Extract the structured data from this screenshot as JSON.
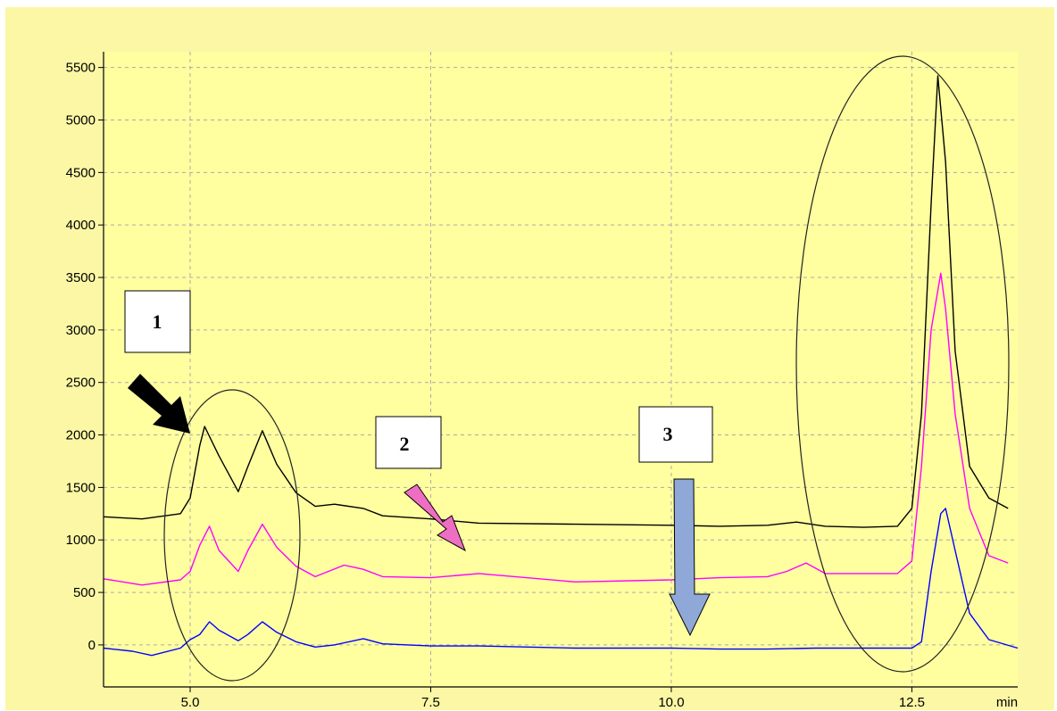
{
  "chart_data": {
    "type": "line",
    "title": "",
    "xlabel": "min",
    "ylabel": "",
    "xlim": [
      4.1,
      13.6
    ],
    "ylim": [
      -400,
      5650
    ],
    "xticks": [
      5.0,
      7.5,
      10.0,
      12.5
    ],
    "xtick_labels": [
      "5.0",
      "7.5",
      "10.0",
      "12.5"
    ],
    "yticks": [
      0,
      500,
      1000,
      1500,
      2000,
      2500,
      3000,
      3500,
      4000,
      4500,
      5000,
      5500
    ],
    "ytick_labels": [
      "0",
      "500",
      "1000",
      "1500",
      "2000",
      "2500",
      "3000",
      "3500",
      "4000",
      "4500",
      "5000",
      "5500"
    ],
    "grid": true,
    "colors": {
      "page_background": "#ffffff",
      "outer_background": "#fbf7a5",
      "plot_background": "#ffffa0",
      "grid": "#aaaaaa",
      "annotation": "#000000"
    },
    "series": [
      {
        "color": "#000000",
        "x": [
          4.1,
          4.5,
          4.9,
          5.0,
          5.1,
          5.15,
          5.3,
          5.5,
          5.6,
          5.75,
          5.9,
          6.1,
          6.3,
          6.5,
          6.8,
          7.0,
          7.5,
          8.0,
          9.0,
          10.0,
          10.5,
          11.0,
          11.3,
          11.6,
          12.0,
          12.35,
          12.5,
          12.6,
          12.7,
          12.77,
          12.85,
          12.95,
          13.1,
          13.3,
          13.5
        ],
        "y": [
          1220,
          1200,
          1250,
          1400,
          1900,
          2080,
          1800,
          1460,
          1700,
          2040,
          1720,
          1450,
          1320,
          1340,
          1300,
          1230,
          1200,
          1160,
          1150,
          1140,
          1130,
          1140,
          1170,
          1130,
          1120,
          1130,
          1300,
          2200,
          4200,
          5420,
          4600,
          2800,
          1700,
          1400,
          1300
        ]
      },
      {
        "color": "#ff00ff",
        "x": [
          4.1,
          4.5,
          4.9,
          5.0,
          5.1,
          5.2,
          5.3,
          5.5,
          5.6,
          5.75,
          5.9,
          6.1,
          6.3,
          6.6,
          6.8,
          7.0,
          7.5,
          8.0,
          9.0,
          10.0,
          10.5,
          11.0,
          11.2,
          11.4,
          11.6,
          12.0,
          12.35,
          12.5,
          12.6,
          12.7,
          12.8,
          12.85,
          12.95,
          13.1,
          13.3,
          13.5
        ],
        "y": [
          630,
          570,
          620,
          700,
          950,
          1130,
          900,
          700,
          900,
          1150,
          930,
          750,
          650,
          760,
          720,
          650,
          640,
          680,
          600,
          620,
          640,
          650,
          700,
          780,
          680,
          680,
          680,
          800,
          1700,
          3000,
          3540,
          3200,
          2200,
          1300,
          850,
          780
        ]
      },
      {
        "color": "#0000ff",
        "x": [
          4.1,
          4.4,
          4.6,
          4.9,
          5.0,
          5.1,
          5.2,
          5.3,
          5.5,
          5.6,
          5.75,
          5.9,
          6.1,
          6.3,
          6.5,
          6.8,
          7.0,
          7.5,
          8.0,
          9.0,
          10.0,
          10.5,
          11.0,
          11.5,
          12.0,
          12.35,
          12.5,
          12.6,
          12.7,
          12.8,
          12.85,
          12.95,
          13.1,
          13.3,
          13.6
        ],
        "y": [
          -30,
          -60,
          -100,
          -30,
          50,
          100,
          220,
          140,
          40,
          100,
          220,
          120,
          30,
          -20,
          0,
          60,
          10,
          -10,
          -10,
          -30,
          -30,
          -40,
          -40,
          -30,
          -30,
          -30,
          -30,
          30,
          700,
          1250,
          1300,
          900,
          300,
          50,
          -30
        ]
      }
    ],
    "annotations": [
      {
        "label": "1",
        "arrow_color": "#000000"
      },
      {
        "label": "2",
        "arrow_color": "#ee6ec4"
      },
      {
        "label": "3",
        "arrow_color": "#8fa8d8"
      }
    ]
  }
}
